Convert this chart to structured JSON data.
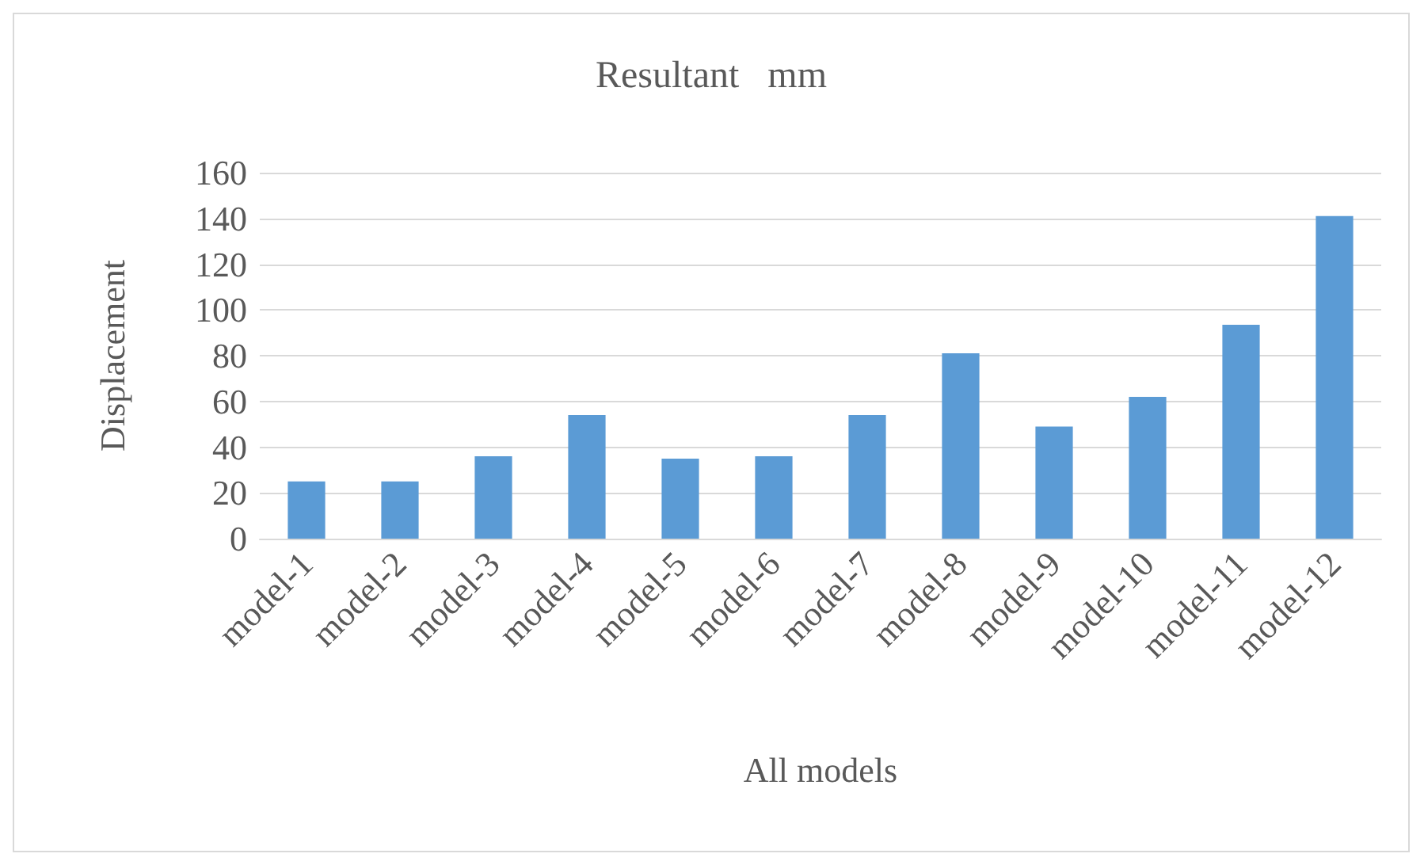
{
  "chart_data": {
    "type": "bar",
    "title": "Resultant   mm",
    "xlabel": "All models",
    "ylabel": "Displacement",
    "categories": [
      "model-1",
      "model-2",
      "model-3",
      "model-4",
      "model-5",
      "model-6",
      "model-7",
      "model-8",
      "model-9",
      "model-10",
      "model-11",
      "model-12"
    ],
    "values": [
      25,
      25,
      36,
      54,
      35,
      36,
      54,
      81,
      49,
      62,
      93.5,
      141
    ],
    "color": "#5b9bd5",
    "ylim": [
      0,
      160
    ],
    "yticks": [
      0,
      20,
      40,
      60,
      80,
      100,
      120,
      140,
      160
    ],
    "grid": "y"
  }
}
